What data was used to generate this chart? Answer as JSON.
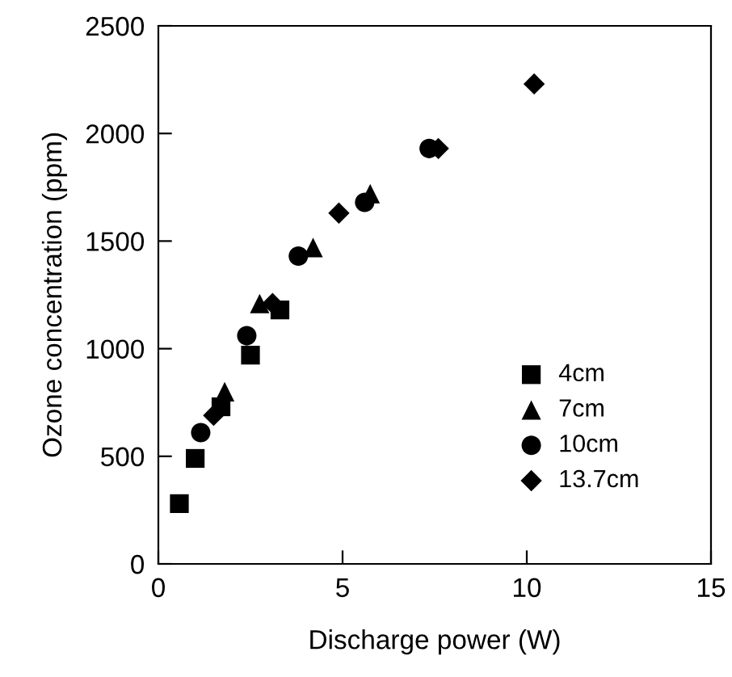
{
  "chart_data": {
    "type": "scatter",
    "xlabel": "Discharge power (W)",
    "ylabel": "Ozone concentration (ppm)",
    "xlim": [
      0,
      15
    ],
    "xticks": [
      0,
      5,
      10,
      15
    ],
    "ylim": [
      0,
      2500
    ],
    "yticks": [
      0,
      500,
      1000,
      1500,
      2000,
      2500
    ],
    "grid": false,
    "legend": "bottom right",
    "series": [
      {
        "name": "4cm",
        "color": "#000000",
        "marker": "square",
        "x": [
          0.57,
          1.0,
          1.7,
          2.5,
          3.3
        ],
        "values": [
          280,
          490,
          730,
          970,
          1180
        ]
      },
      {
        "name": "7cm",
        "color": "#000000",
        "marker": "triangle",
        "x": [
          1.8,
          2.75,
          4.2,
          5.75
        ],
        "values": [
          800,
          1210,
          1470,
          1720
        ]
      },
      {
        "name": "10cm",
        "color": "#000000",
        "marker": "circle",
        "x": [
          1.15,
          2.4,
          3.8,
          5.6,
          7.35
        ],
        "values": [
          610,
          1060,
          1430,
          1680,
          1930
        ]
      },
      {
        "name": "13.7cm",
        "color": "#000000",
        "marker": "diamond",
        "x": [
          1.5,
          3.1,
          4.9,
          7.6,
          10.2
        ],
        "values": [
          690,
          1210,
          1630,
          1930,
          2230
        ]
      }
    ]
  }
}
